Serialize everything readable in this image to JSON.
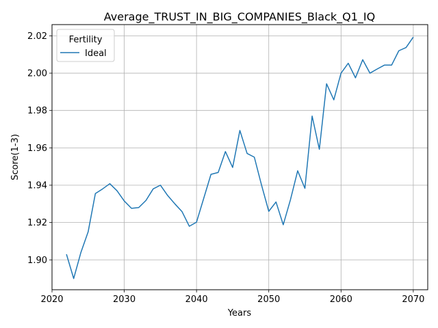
{
  "chart_data": {
    "type": "line",
    "title": "Average_TRUST_IN_BIG_COMPANIES_Black_Q1_IQ",
    "xlabel": "Years",
    "ylabel": "Score(1-3)",
    "xlim": [
      2020,
      2072
    ],
    "ylim": [
      1.884,
      2.026
    ],
    "xticks": [
      2020,
      2030,
      2040,
      2050,
      2060,
      2070
    ],
    "yticks": [
      1.9,
      1.92,
      1.94,
      1.96,
      1.98,
      2.0,
      2.02
    ],
    "ytick_labels": [
      "1.90",
      "1.92",
      "1.94",
      "1.96",
      "1.98",
      "2.00",
      "2.02"
    ],
    "grid": true,
    "legend": {
      "title": "Fertility",
      "placement": "top-left"
    },
    "series": [
      {
        "name": "Ideal",
        "color": "#1f77b4",
        "x": [
          2022,
          2023,
          2024,
          2025,
          2026,
          2027,
          2028,
          2029,
          2030,
          2031,
          2032,
          2033,
          2034,
          2035,
          2036,
          2037,
          2038,
          2039,
          2040,
          2041,
          2042,
          2043,
          2044,
          2045,
          2046,
          2047,
          2048,
          2049,
          2050,
          2051,
          2052,
          2053,
          2054,
          2055,
          2056,
          2057,
          2058,
          2059,
          2060,
          2061,
          2062,
          2063,
          2064,
          2065,
          2066,
          2067,
          2068,
          2069,
          2070
        ],
        "values": [
          1.903,
          1.89,
          1.904,
          1.915,
          1.9355,
          1.938,
          1.9408,
          1.937,
          1.9315,
          1.9276,
          1.928,
          1.9318,
          1.938,
          1.94,
          1.9345,
          1.93,
          1.9258,
          1.918,
          1.9202,
          1.933,
          1.9458,
          1.9468,
          1.958,
          1.9495,
          1.9693,
          1.957,
          1.955,
          1.94,
          1.926,
          1.931,
          1.9188,
          1.9322,
          1.9477,
          1.9383,
          1.977,
          1.9592,
          1.9943,
          1.9857,
          2.0,
          2.0053,
          1.9975,
          2.0072,
          2.0,
          2.0022,
          2.0043,
          2.0043,
          2.012,
          2.0137,
          2.0193
        ]
      }
    ]
  }
}
